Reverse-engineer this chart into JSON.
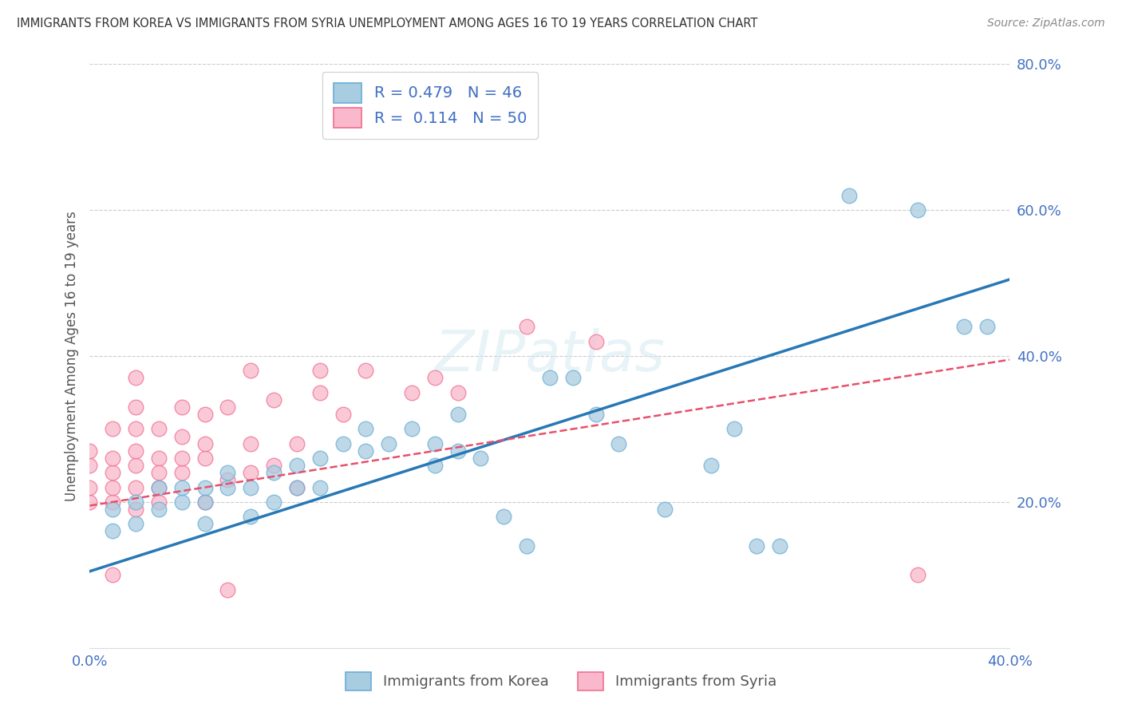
{
  "title": "IMMIGRANTS FROM KOREA VS IMMIGRANTS FROM SYRIA UNEMPLOYMENT AMONG AGES 16 TO 19 YEARS CORRELATION CHART",
  "source": "Source: ZipAtlas.com",
  "ylabel": "Unemployment Among Ages 16 to 19 years",
  "korea_R": 0.479,
  "korea_N": 46,
  "syria_R": 0.114,
  "syria_N": 50,
  "korea_color": "#a8cce0",
  "korea_color_edge": "#6aaed6",
  "syria_color": "#f9b8cb",
  "syria_color_edge": "#f07090",
  "trend_korea_color": "#2878b5",
  "trend_syria_color": "#e8506a",
  "xlim": [
    0.0,
    0.4
  ],
  "ylim": [
    0.0,
    0.8
  ],
  "xticks": [
    0.0,
    0.1,
    0.2,
    0.3,
    0.4
  ],
  "yticks": [
    0.0,
    0.2,
    0.4,
    0.6,
    0.8
  ],
  "background_color": "#ffffff",
  "watermark": "ZIPatlas",
  "legend_label_korea": "Immigrants from Korea",
  "legend_label_syria": "Immigrants from Syria",
  "korea_trend_x0": 0.0,
  "korea_trend_y0": 0.105,
  "korea_trend_x1": 0.4,
  "korea_trend_y1": 0.505,
  "syria_trend_x0": 0.0,
  "syria_trend_y0": 0.195,
  "syria_trend_x1": 0.4,
  "syria_trend_y1": 0.395,
  "korea_x": [
    0.01,
    0.01,
    0.02,
    0.02,
    0.03,
    0.03,
    0.04,
    0.04,
    0.05,
    0.05,
    0.05,
    0.06,
    0.06,
    0.07,
    0.07,
    0.08,
    0.08,
    0.09,
    0.09,
    0.1,
    0.1,
    0.11,
    0.12,
    0.12,
    0.13,
    0.14,
    0.15,
    0.15,
    0.16,
    0.16,
    0.17,
    0.18,
    0.19,
    0.2,
    0.21,
    0.22,
    0.23,
    0.25,
    0.27,
    0.28,
    0.29,
    0.3,
    0.33,
    0.36,
    0.38,
    0.39
  ],
  "korea_y": [
    0.16,
    0.19,
    0.17,
    0.2,
    0.19,
    0.22,
    0.2,
    0.22,
    0.2,
    0.17,
    0.22,
    0.22,
    0.24,
    0.22,
    0.18,
    0.24,
    0.2,
    0.25,
    0.22,
    0.26,
    0.22,
    0.28,
    0.27,
    0.3,
    0.28,
    0.3,
    0.28,
    0.25,
    0.32,
    0.27,
    0.26,
    0.18,
    0.14,
    0.37,
    0.37,
    0.32,
    0.28,
    0.19,
    0.25,
    0.3,
    0.14,
    0.14,
    0.62,
    0.6,
    0.44,
    0.44
  ],
  "syria_x": [
    0.0,
    0.0,
    0.0,
    0.0,
    0.01,
    0.01,
    0.01,
    0.01,
    0.01,
    0.01,
    0.02,
    0.02,
    0.02,
    0.02,
    0.02,
    0.02,
    0.02,
    0.03,
    0.03,
    0.03,
    0.03,
    0.03,
    0.04,
    0.04,
    0.04,
    0.04,
    0.05,
    0.05,
    0.05,
    0.05,
    0.06,
    0.06,
    0.07,
    0.07,
    0.07,
    0.08,
    0.08,
    0.09,
    0.09,
    0.1,
    0.1,
    0.11,
    0.12,
    0.14,
    0.15,
    0.16,
    0.19,
    0.22,
    0.36,
    0.06
  ],
  "syria_y": [
    0.2,
    0.22,
    0.25,
    0.27,
    0.2,
    0.22,
    0.24,
    0.26,
    0.3,
    0.1,
    0.19,
    0.22,
    0.25,
    0.27,
    0.3,
    0.33,
    0.37,
    0.22,
    0.26,
    0.24,
    0.2,
    0.3,
    0.24,
    0.26,
    0.29,
    0.33,
    0.26,
    0.28,
    0.32,
    0.2,
    0.23,
    0.33,
    0.28,
    0.24,
    0.38,
    0.25,
    0.34,
    0.28,
    0.22,
    0.35,
    0.38,
    0.32,
    0.38,
    0.35,
    0.37,
    0.35,
    0.44,
    0.42,
    0.1,
    0.08
  ]
}
